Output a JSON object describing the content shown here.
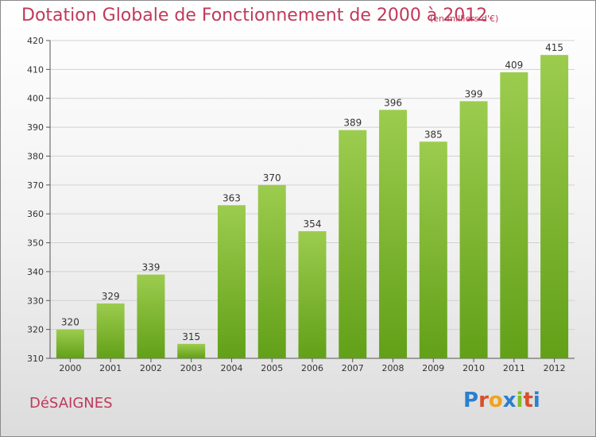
{
  "header": {
    "title": "Dotation Globale de Fonctionnement de 2000 à 2012",
    "subtitle": "(en milliers d'€)"
  },
  "footer": {
    "commune": "DéSAIGNES",
    "logo_letters": [
      "P",
      "r",
      "o",
      "x",
      "i",
      "t",
      "i"
    ],
    "logo_colors": [
      "#2a7fd0",
      "#d94f2a",
      "#f0a31c",
      "#2a7fd0",
      "#7cbf2a",
      "#d94f2a",
      "#2a7fd0"
    ]
  },
  "chart_data": {
    "type": "bar",
    "categories": [
      "2000",
      "2001",
      "2002",
      "2003",
      "2004",
      "2005",
      "2006",
      "2007",
      "2008",
      "2009",
      "2010",
      "2011",
      "2012"
    ],
    "values": [
      320,
      329,
      339,
      315,
      363,
      370,
      354,
      389,
      396,
      385,
      399,
      409,
      415
    ],
    "ylim": [
      310,
      420
    ],
    "yticks": [
      310,
      320,
      330,
      340,
      350,
      360,
      370,
      380,
      390,
      400,
      410,
      420
    ],
    "grid": true,
    "bar_color_top": "#9ccc4e",
    "bar_color_bottom": "#62a018",
    "title": "Dotation Globale de Fonctionnement de 2000 à 2012",
    "xlabel": "",
    "ylabel": ""
  }
}
